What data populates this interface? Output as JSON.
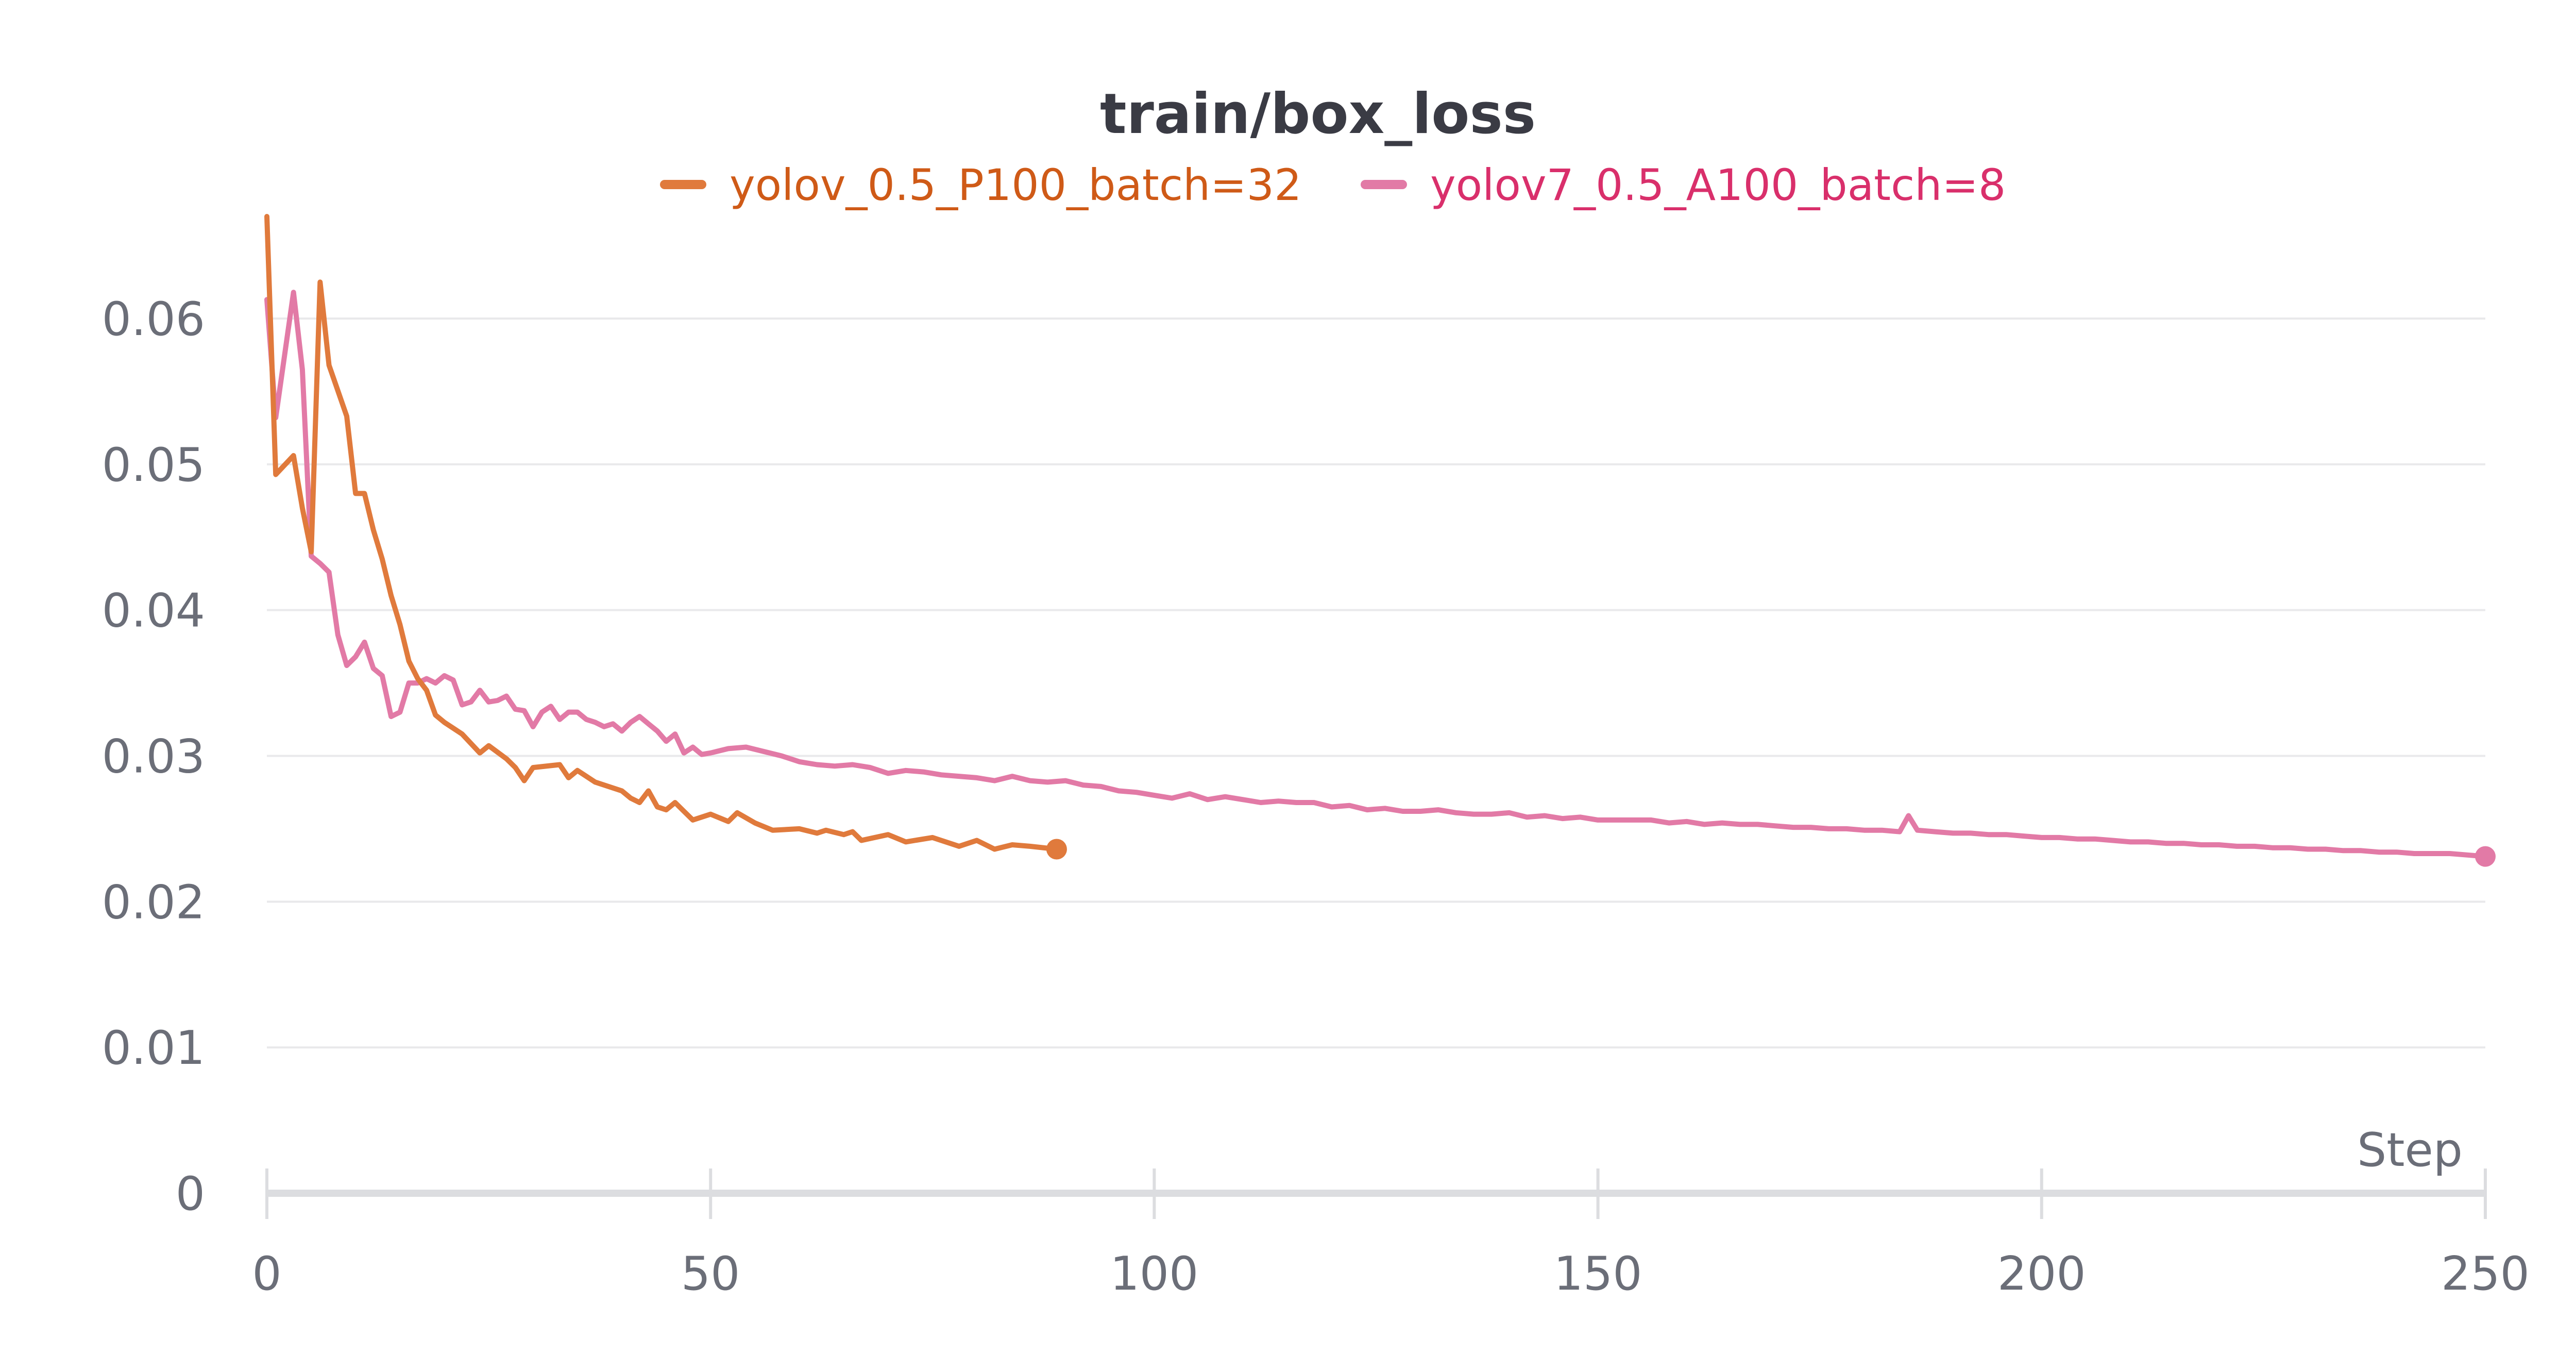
{
  "chart_data": {
    "type": "line",
    "title": "train/box_loss",
    "xlabel": "Step",
    "ylabel": "",
    "xlim": [
      0,
      250
    ],
    "ylim": [
      0,
      0.067
    ],
    "xticks": [
      0,
      50,
      100,
      150,
      200,
      250
    ],
    "yticks": [
      0,
      0.01,
      0.02,
      0.03,
      0.04,
      0.05,
      0.06
    ],
    "xtick_labels": [
      "0",
      "50",
      "100",
      "150",
      "200",
      "250"
    ],
    "ytick_labels": [
      "0",
      "0.01",
      "0.02",
      "0.03",
      "0.04",
      "0.05",
      "0.06"
    ],
    "grid": true,
    "legend_position": "top-center",
    "series": [
      {
        "name": "yolov_0.5_P100_batch=32",
        "color": "#e07a3c",
        "x": [
          0,
          1,
          3,
          4,
          5,
          6,
          7,
          9,
          10,
          11,
          12,
          13,
          14,
          15,
          16,
          17,
          18,
          19,
          20,
          22,
          24,
          25,
          27,
          28,
          29,
          30,
          33,
          34,
          35,
          37,
          40,
          41,
          42,
          43,
          44,
          45,
          46,
          47,
          48,
          50,
          52,
          53,
          55,
          57,
          60,
          62,
          63,
          65,
          66,
          67,
          70,
          72,
          75,
          78,
          80,
          82,
          84,
          86,
          89
        ],
        "values": [
          0.067,
          0.0493,
          0.0506,
          0.047,
          0.044,
          0.0625,
          0.0568,
          0.0533,
          0.048,
          0.048,
          0.0455,
          0.0435,
          0.041,
          0.039,
          0.0365,
          0.0353,
          0.0345,
          0.0328,
          0.0323,
          0.0315,
          0.0302,
          0.0307,
          0.0298,
          0.0292,
          0.0283,
          0.0292,
          0.0294,
          0.0285,
          0.029,
          0.0282,
          0.0276,
          0.0271,
          0.0268,
          0.0276,
          0.0265,
          0.0263,
          0.0268,
          0.0262,
          0.0256,
          0.026,
          0.0255,
          0.0261,
          0.0254,
          0.0249,
          0.025,
          0.0247,
          0.0249,
          0.0246,
          0.0248,
          0.0242,
          0.0246,
          0.0241,
          0.0244,
          0.0238,
          0.0242,
          0.0236,
          0.0239,
          0.0238,
          0.0236
        ]
      },
      {
        "name": "yolov7_0.5_A100_batch=8",
        "color": "#e27aa6",
        "x": [
          0,
          1,
          3,
          4,
          5,
          6,
          7,
          8,
          9,
          10,
          11,
          12,
          13,
          14,
          15,
          16,
          17,
          18,
          19,
          20,
          21,
          22,
          23,
          24,
          25,
          26,
          27,
          28,
          29,
          30,
          31,
          32,
          33,
          34,
          35,
          36,
          37,
          38,
          39,
          40,
          41,
          42,
          43,
          44,
          45,
          46,
          47,
          48,
          49,
          50,
          52,
          54,
          56,
          58,
          60,
          62,
          64,
          66,
          68,
          70,
          72,
          74,
          76,
          78,
          80,
          82,
          84,
          86,
          88,
          90,
          92,
          94,
          96,
          98,
          100,
          102,
          104,
          106,
          108,
          110,
          112,
          114,
          116,
          118,
          120,
          122,
          124,
          126,
          128,
          130,
          132,
          134,
          136,
          138,
          140,
          142,
          144,
          146,
          148,
          150,
          152,
          154,
          156,
          158,
          160,
          162,
          164,
          166,
          168,
          170,
          172,
          174,
          176,
          178,
          180,
          182,
          184,
          185,
          186,
          188,
          190,
          192,
          194,
          196,
          198,
          200,
          202,
          204,
          206,
          208,
          210,
          212,
          214,
          216,
          218,
          220,
          222,
          224,
          226,
          228,
          230,
          232,
          234,
          236,
          238,
          240,
          242,
          244,
          246,
          248,
          250
        ],
        "values": [
          0.0613,
          0.0532,
          0.0618,
          0.0565,
          0.0437,
          0.0432,
          0.0426,
          0.0383,
          0.0362,
          0.0368,
          0.0378,
          0.036,
          0.0355,
          0.0327,
          0.033,
          0.035,
          0.035,
          0.0353,
          0.035,
          0.0355,
          0.0352,
          0.0335,
          0.0337,
          0.0345,
          0.0337,
          0.0338,
          0.0341,
          0.0332,
          0.0331,
          0.032,
          0.033,
          0.0334,
          0.0325,
          0.033,
          0.033,
          0.0325,
          0.0323,
          0.032,
          0.0322,
          0.0317,
          0.0323,
          0.0327,
          0.0322,
          0.0317,
          0.031,
          0.0315,
          0.0302,
          0.0306,
          0.0301,
          0.0302,
          0.0305,
          0.0306,
          0.0303,
          0.03,
          0.0296,
          0.0294,
          0.0293,
          0.0294,
          0.0292,
          0.0288,
          0.029,
          0.0289,
          0.0287,
          0.0286,
          0.0285,
          0.0283,
          0.0286,
          0.0283,
          0.0282,
          0.0283,
          0.028,
          0.0279,
          0.0276,
          0.0275,
          0.0273,
          0.0271,
          0.0274,
          0.027,
          0.0272,
          0.027,
          0.0268,
          0.0269,
          0.0268,
          0.0268,
          0.0265,
          0.0266,
          0.0263,
          0.0264,
          0.0262,
          0.0262,
          0.0263,
          0.0261,
          0.026,
          0.026,
          0.0261,
          0.0258,
          0.0259,
          0.0257,
          0.0258,
          0.0256,
          0.0256,
          0.0256,
          0.0256,
          0.0254,
          0.0255,
          0.0253,
          0.0254,
          0.0253,
          0.0253,
          0.0252,
          0.0251,
          0.0251,
          0.025,
          0.025,
          0.0249,
          0.0249,
          0.0248,
          0.0259,
          0.0249,
          0.0248,
          0.0247,
          0.0247,
          0.0246,
          0.0246,
          0.0245,
          0.0244,
          0.0244,
          0.0243,
          0.0243,
          0.0242,
          0.0241,
          0.0241,
          0.024,
          0.024,
          0.0239,
          0.0239,
          0.0238,
          0.0238,
          0.0237,
          0.0237,
          0.0236,
          0.0236,
          0.0235,
          0.0235,
          0.0234,
          0.0234,
          0.0233,
          0.0233,
          0.0233,
          0.0232,
          0.0231
        ]
      }
    ]
  }
}
